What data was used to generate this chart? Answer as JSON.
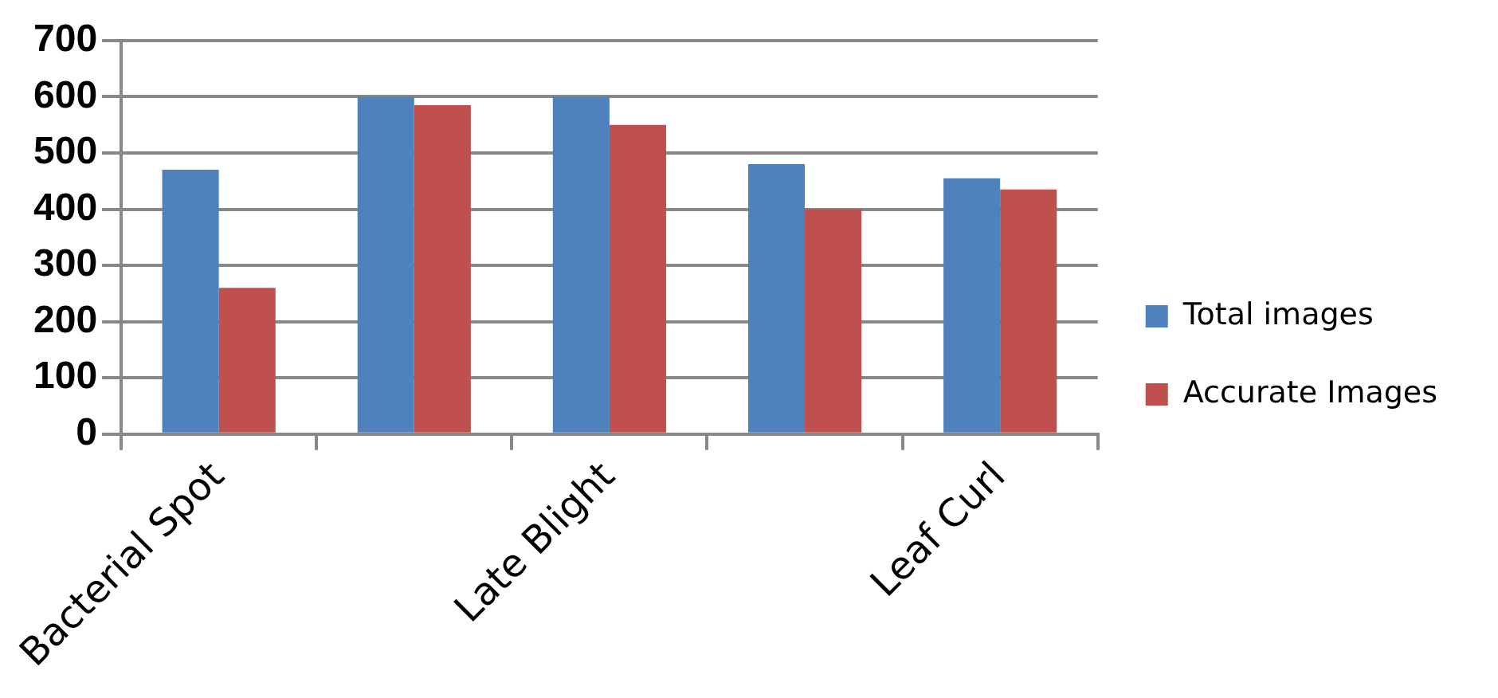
{
  "chart_data": {
    "type": "bar",
    "categories": [
      "Bacterial Spot",
      null,
      "Late Blight",
      null,
      "Leaf Curl"
    ],
    "series": [
      {
        "name": "Total images",
        "color": "#4f81bd",
        "values": [
          470,
          600,
          600,
          480,
          455
        ]
      },
      {
        "name": "Accurate Images",
        "color": "#c0504d",
        "values": [
          260,
          585,
          550,
          400,
          435
        ]
      }
    ],
    "ylim": [
      0,
      700
    ],
    "yticks": [
      0,
      100,
      200,
      300,
      400,
      500,
      600,
      700
    ],
    "grid": "y",
    "legend": "right"
  }
}
